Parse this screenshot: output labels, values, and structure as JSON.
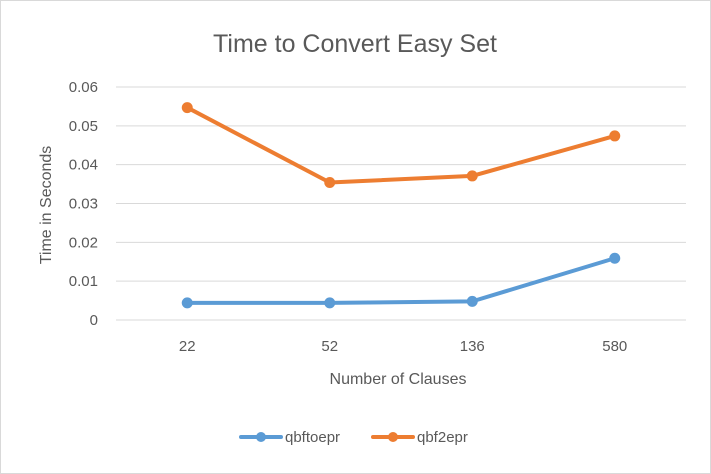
{
  "chart_data": {
    "type": "line",
    "title": "Time to Convert Easy Set",
    "xlabel": "Number of Clauses",
    "ylabel": "Time in Seconds",
    "categories": [
      "22",
      "52",
      "136",
      "580"
    ],
    "ylim": [
      0,
      0.06
    ],
    "yticks": [
      "0",
      "0.01",
      "0.02",
      "0.03",
      "0.04",
      "0.05",
      "0.06"
    ],
    "grid": true,
    "legend_position": "bottom",
    "series": [
      {
        "name": "qbftoepr",
        "color": "#5b9bd5",
        "values": [
          0.0044,
          0.0044,
          0.0048,
          0.0159
        ]
      },
      {
        "name": "qbf2epr",
        "color": "#ed7d31",
        "values": [
          0.0547,
          0.0354,
          0.0371,
          0.0474
        ]
      }
    ]
  }
}
